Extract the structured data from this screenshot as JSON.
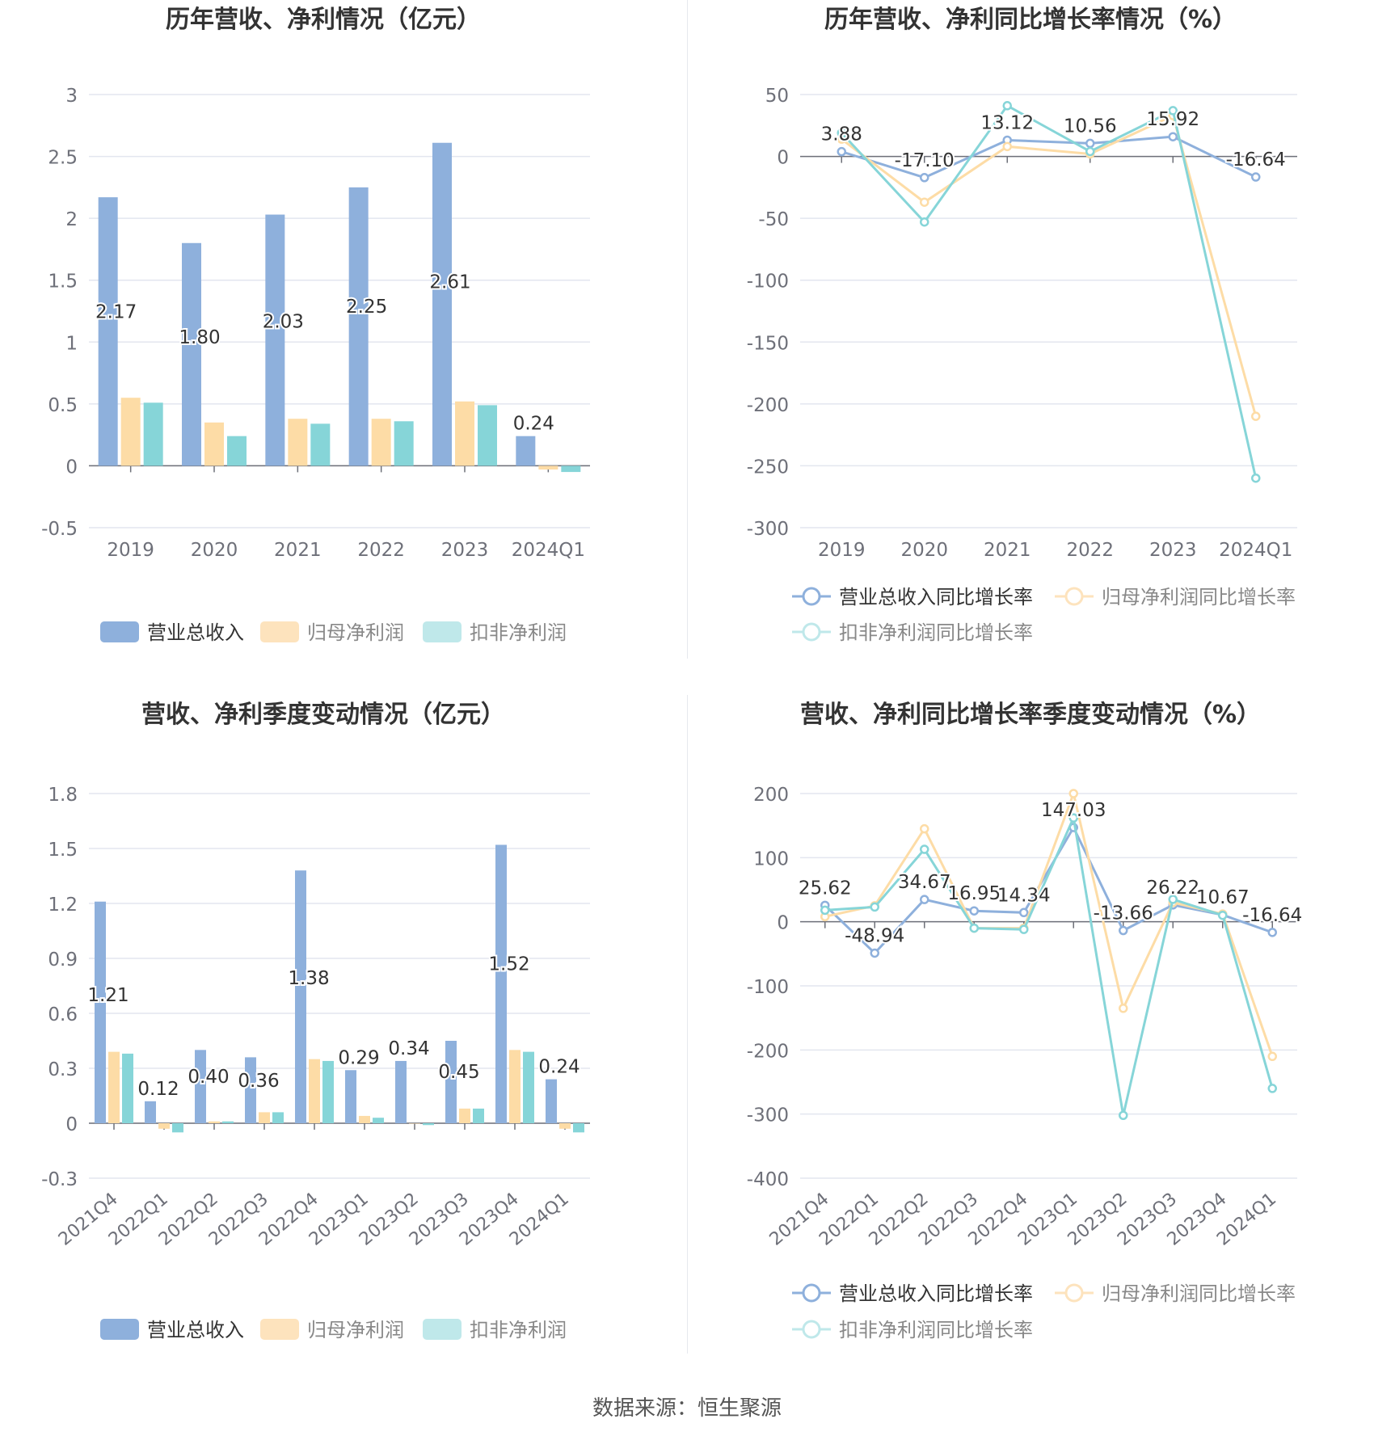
{
  "footer": "数据来源：恒生聚源",
  "colors": {
    "revenue": "#8eb0dc",
    "netprofit": "#fddca6",
    "deducted": "#86d5d8",
    "grid": "#e3e6ef",
    "axis": "#6e7079"
  },
  "chart_data": [
    {
      "type": "bar",
      "title": "历年营收、净利情况（亿元）",
      "categories": [
        "2019",
        "2020",
        "2021",
        "2022",
        "2023",
        "2024Q1"
      ],
      "series": [
        {
          "name": "营业总收入",
          "values": [
            2.17,
            1.8,
            2.03,
            2.25,
            2.61,
            0.24
          ]
        },
        {
          "name": "归母净利润",
          "values": [
            0.55,
            0.35,
            0.38,
            0.38,
            0.52,
            -0.03
          ]
        },
        {
          "name": "扣非净利润",
          "values": [
            0.51,
            0.24,
            0.34,
            0.36,
            0.49,
            -0.05
          ]
        }
      ],
      "data_labels": [
        "2.17",
        "1.80",
        "2.03",
        "2.25",
        "2.61",
        "0.24"
      ],
      "ylim": [
        -0.5,
        3
      ],
      "yticks": [
        "3",
        "2.5",
        "2",
        "1.5",
        "1",
        "0.5",
        "0",
        "-0.5"
      ],
      "grid": true,
      "legend": "bottom"
    },
    {
      "type": "line",
      "title": "历年营收、净利同比增长率情况（%）",
      "categories": [
        "2019",
        "2020",
        "2021",
        "2022",
        "2023",
        "2024Q1"
      ],
      "series": [
        {
          "name": "营业总收入同比增长率",
          "values": [
            3.88,
            -17.1,
            13.12,
            10.56,
            15.92,
            -16.64
          ]
        },
        {
          "name": "归母净利润同比增长率",
          "values": [
            14,
            -37,
            8,
            2,
            33,
            -210
          ]
        },
        {
          "name": "扣非净利润同比增长率",
          "values": [
            19,
            -53,
            41,
            4,
            37,
            -260
          ]
        }
      ],
      "data_labels": [
        "3.88",
        "-17.10",
        "13.12",
        "10.56",
        "15.92",
        "-16.64"
      ],
      "ylim": [
        -300,
        50
      ],
      "yticks": [
        "50",
        "0",
        "-50",
        "-100",
        "-150",
        "-200",
        "-250",
        "-300"
      ],
      "grid": true,
      "legend": "bottom"
    },
    {
      "type": "bar",
      "title": "营收、净利季度变动情况（亿元）",
      "categories": [
        "2021Q4",
        "2022Q1",
        "2022Q2",
        "2022Q3",
        "2022Q4",
        "2023Q1",
        "2023Q2",
        "2023Q3",
        "2023Q4",
        "2024Q1"
      ],
      "series": [
        {
          "name": "营业总收入",
          "values": [
            1.21,
            0.12,
            0.4,
            0.36,
            1.38,
            0.29,
            0.34,
            0.45,
            1.52,
            0.24
          ]
        },
        {
          "name": "归母净利润",
          "values": [
            0.39,
            -0.03,
            0.01,
            0.06,
            0.35,
            0.04,
            0.0,
            0.08,
            0.4,
            -0.03
          ]
        },
        {
          "name": "扣非净利润",
          "values": [
            0.38,
            -0.05,
            0.01,
            0.06,
            0.34,
            0.03,
            -0.01,
            0.08,
            0.39,
            -0.05
          ]
        }
      ],
      "data_labels": [
        "1.21",
        "0.12",
        "0.40",
        "0.36",
        "1.38",
        "0.29",
        "0.34",
        "0.45",
        "1.52",
        "0.24"
      ],
      "ylim": [
        -0.3,
        1.8
      ],
      "yticks": [
        "1.8",
        "1.5",
        "1.2",
        "0.9",
        "0.6",
        "0.3",
        "0",
        "-0.3"
      ],
      "grid": true,
      "legend": "bottom"
    },
    {
      "type": "line",
      "title": "营收、净利同比增长率季度变动情况（%）",
      "categories": [
        "2021Q4",
        "2022Q1",
        "2022Q2",
        "2022Q3",
        "2022Q4",
        "2023Q1",
        "2023Q2",
        "2023Q3",
        "2023Q4",
        "2024Q1"
      ],
      "series": [
        {
          "name": "营业总收入同比增长率",
          "values": [
            25.62,
            -48.94,
            34.67,
            16.95,
            14.34,
            147.03,
            -13.66,
            26.22,
            10.67,
            -16.64
          ]
        },
        {
          "name": "归母净利润同比增长率",
          "values": [
            8,
            25,
            145,
            -10,
            -10,
            200,
            -135,
            30,
            12,
            -210
          ]
        },
        {
          "name": "扣非净利润同比增长率",
          "values": [
            18,
            23,
            113,
            -10,
            -12,
            162,
            -302,
            35,
            10,
            -260
          ]
        }
      ],
      "data_labels": [
        "25.62",
        "-48.94",
        "34.67",
        "16.95",
        "14.34",
        "147.03",
        "-13.66",
        "26.22",
        "10.67",
        "-16.64"
      ],
      "ylim": [
        -400,
        200
      ],
      "yticks": [
        "200",
        "100",
        "0",
        "-100",
        "-200",
        "-300",
        "-400"
      ],
      "grid": true,
      "legend": "bottom"
    }
  ]
}
